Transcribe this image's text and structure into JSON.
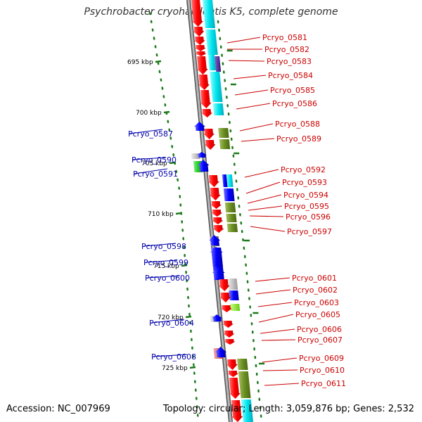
{
  "title": "Psychrobacter cryohalolentis K5, complete genome",
  "accession": "Accession: NC_007969",
  "topology": "Topology: circular; Length: 3,059,876 bp; Genes: 2,532",
  "colors": {
    "backbone": "#8c8c8c",
    "ticks": "#1a7a1a",
    "forward_label": "#cc0000",
    "reverse_label": "#0000aa",
    "cds_forward": "#ff0000",
    "cds_reverse": "#0000ff",
    "cog_cyan": "#00e5ee",
    "cog_olive": "#6b8e23",
    "cog_purple": "#5522aa",
    "cog_green": "#22cc22",
    "cog_gray": "#777777",
    "cog_lightgray": "#bbbbbb",
    "cog_lime": "#88ee22",
    "cog_pink": "#e06060"
  },
  "scale_ticks": [
    "695 kbp",
    "700 kbp",
    "705 kbp",
    "710 kbp",
    "715 kbp",
    "720 kbp",
    "725 kbp"
  ],
  "forward_genes": [
    "Pcryo_0581",
    "Pcryo_0582",
    "Pcryo_0583",
    "Pcryo_0584",
    "Pcryo_0585",
    "Pcryo_0586",
    "Pcryo_0588",
    "Pcryo_0589",
    "Pcryo_0592",
    "Pcryo_0593",
    "Pcryo_0594",
    "Pcryo_0595",
    "Pcryo_0596",
    "Pcryo_0597",
    "Pcryo_0601",
    "Pcryo_0602",
    "Pcryo_0603",
    "Pcryo_0605",
    "Pcryo_0606",
    "Pcryo_0607",
    "Pcryo_0609",
    "Pcryo_0610",
    "Pcryo_0611"
  ],
  "reverse_genes": [
    "Pcryo_0587",
    "Pcryo_0590",
    "Pcryo_0591",
    "Pcryo_0598",
    "Pcryo_0599",
    "Pcryo_0600",
    "Pcryo_0604",
    "Pcryo_0608"
  ]
}
